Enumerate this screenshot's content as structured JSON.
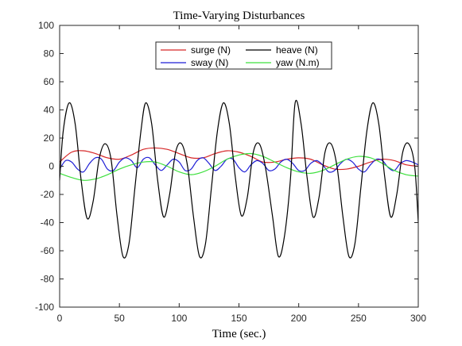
{
  "chart_data": {
    "type": "line",
    "title": "Time-Varying Disturbances",
    "xlabel": "Time (sec.)",
    "ylabel": "",
    "xlim": [
      0,
      300
    ],
    "ylim": [
      -100,
      100
    ],
    "xticks": [
      0,
      50,
      100,
      150,
      200,
      250,
      300
    ],
    "yticks": [
      -100,
      -80,
      -60,
      -40,
      -20,
      0,
      20,
      40,
      60,
      80,
      100
    ],
    "grid": false,
    "legend_position": "top-center",
    "series": [
      {
        "name": "surge (N)",
        "color": "#d62728",
        "x": [
          0,
          10,
          20,
          30,
          40,
          50,
          60,
          70,
          80,
          90,
          100,
          110,
          120,
          130,
          140,
          150,
          160,
          170,
          180,
          190,
          200,
          210,
          220,
          230,
          240,
          250,
          260,
          270,
          280,
          290,
          300
        ],
        "y": [
          3,
          10,
          11,
          9,
          6,
          5,
          8,
          12,
          13,
          12,
          9,
          6,
          6,
          9,
          11,
          10,
          7,
          3,
          3,
          5,
          6,
          5,
          1,
          -2,
          -2,
          0,
          3,
          5,
          4,
          1,
          0
        ]
      },
      {
        "name": "heave (N)",
        "color": "#000000",
        "x": [
          0,
          3,
          8,
          13,
          18,
          23,
          28,
          33,
          38,
          43,
          48,
          53,
          58,
          63,
          68,
          72,
          77,
          82,
          87,
          92,
          97,
          102,
          107,
          112,
          117,
          122,
          127,
          132,
          137,
          142,
          147,
          152,
          157,
          162,
          167,
          172,
          178,
          183,
          188,
          193,
          197,
          202,
          207,
          212,
          217,
          222,
          227,
          232,
          237,
          242,
          247,
          252,
          257,
          262,
          267,
          272,
          277,
          282,
          287,
          292,
          297,
          300
        ],
        "y": [
          -10,
          25,
          45,
          30,
          -10,
          -37,
          -25,
          5,
          16,
          5,
          -35,
          -64,
          -55,
          -15,
          25,
          45,
          30,
          -10,
          -36,
          -20,
          10,
          16,
          0,
          -36,
          -64,
          -55,
          -15,
          25,
          45,
          30,
          -8,
          -35,
          -22,
          10,
          16,
          0,
          -35,
          -64,
          -50,
          -10,
          45,
          30,
          -8,
          -36,
          -22,
          10,
          16,
          0,
          -36,
          -64,
          -55,
          -15,
          25,
          45,
          30,
          -8,
          -36,
          -20,
          10,
          16,
          0,
          -40
        ]
      },
      {
        "name": "sway (N)",
        "color": "#1f1fd6",
        "x": [
          0,
          5,
          10,
          15,
          20,
          25,
          30,
          35,
          40,
          45,
          50,
          55,
          60,
          65,
          70,
          75,
          80,
          85,
          90,
          95,
          100,
          105,
          110,
          115,
          120,
          125,
          130,
          135,
          140,
          145,
          150,
          155,
          160,
          165,
          170,
          175,
          180,
          185,
          190,
          195,
          200,
          205,
          210,
          215,
          220,
          225,
          230,
          235,
          240,
          245,
          250,
          255,
          260,
          265,
          270,
          275,
          280,
          285,
          290,
          295,
          300
        ],
        "y": [
          -2,
          4,
          3,
          -2,
          -4,
          2,
          6,
          5,
          -2,
          -3,
          3,
          6,
          4,
          -1,
          5,
          6,
          1,
          -3,
          1,
          5,
          3,
          -3,
          -2,
          4,
          6,
          2,
          -3,
          0,
          5,
          5,
          -1,
          -4,
          1,
          4,
          2,
          -3,
          -2,
          3,
          5,
          2,
          -3,
          -3,
          2,
          4,
          1,
          -4,
          -3,
          2,
          5,
          3,
          -2,
          -4,
          1,
          5,
          4,
          -1,
          -3,
          2,
          4,
          3,
          1
        ]
      },
      {
        "name": "yaw (N.m)",
        "color": "#3ee03e",
        "x": [
          0,
          10,
          20,
          30,
          40,
          50,
          60,
          70,
          80,
          90,
          100,
          110,
          120,
          130,
          140,
          150,
          160,
          170,
          180,
          190,
          200,
          210,
          220,
          230,
          240,
          250,
          260,
          270,
          280,
          290,
          300
        ],
        "y": [
          -5,
          -8,
          -10,
          -9,
          -6,
          -2,
          1,
          3,
          3,
          0,
          -4,
          -6,
          -4,
          0,
          5,
          8,
          9,
          7,
          3,
          -1,
          -4,
          -5,
          -3,
          1,
          5,
          7,
          6,
          2,
          -3,
          -6,
          -7
        ]
      }
    ]
  }
}
